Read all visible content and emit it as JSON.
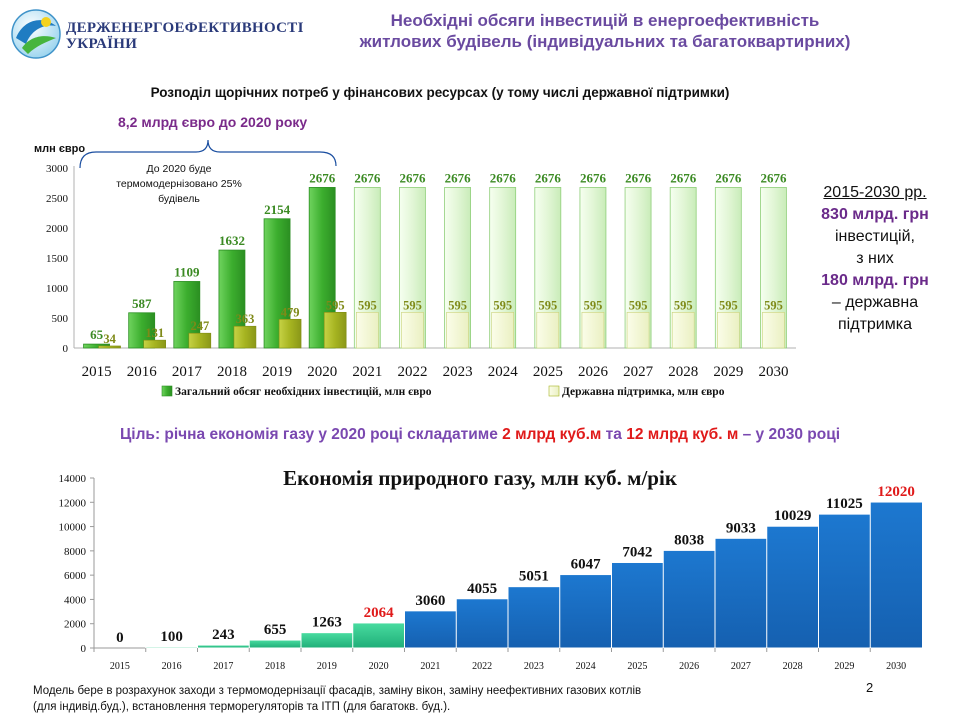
{
  "header": {
    "org_name_line1": "Держенергоефективності",
    "org_name_line2": "України",
    "title_line1": "Необхідні обсяги інвестицій в енергоефективність",
    "title_line2": "житлових будівель (індивідуальних та багатоквартирних)"
  },
  "colors": {
    "title_purple": "#6a4aa0",
    "green_dark": "#3cae2e",
    "green_light": "#e6f7dc",
    "olive_dark": "#a6b421",
    "olive_light": "#f2f6d4",
    "blue": "#1a6fc4",
    "teal": "#2fc48c",
    "red": "#e01a1a"
  },
  "side_info": {
    "period": "2015-2030 рр.",
    "total": "830 млрд. грн",
    "total_label": "інвестицій,",
    "of_which": "з них",
    "state": "180 млрд. грн",
    "state_label": "– державна підтримка"
  },
  "goal": {
    "prefix": "Ціль: річна економія газу у 2020 році складатиме ",
    "value1": "2 млрд куб.м",
    "middle": " та ",
    "value2": "12 млрд куб. м",
    "suffix": " – у 2030 році"
  },
  "footnote": {
    "line1": "Модель бере в розрахунок заходи з термомодернізації  фасадів, заміну вікон, заміну неефективних газових котлів",
    "line2": "(для індивід.буд.), встановлення терморегуляторів та ІТП (для багатокв. буд.)."
  },
  "page_number": "2",
  "chart_data": [
    {
      "type": "bar",
      "title": "Розподіл щорічних потреб у фінансових ресурсах (у тому числі державної підтримки)",
      "bracket_label": "8,2 млрд євро до 2020 року",
      "note": "До 2020 буде термомодернізовано 25% будівель",
      "ylabel": "млн  євро",
      "ylim": [
        0,
        3000
      ],
      "yticks": [
        0,
        500,
        1000,
        1500,
        2000,
        2500,
        3000
      ],
      "categories": [
        "2015",
        "2016",
        "2017",
        "2018",
        "2019",
        "2020",
        "2021",
        "2022",
        "2023",
        "2024",
        "2025",
        "2026",
        "2027",
        "2028",
        "2029",
        "2030"
      ],
      "series": [
        {
          "name": "Загальний обсяг необхідних інвестицій, млн євро",
          "values": [
            65,
            587,
            1109,
            1632,
            2154,
            2676,
            2676,
            2676,
            2676,
            2676,
            2676,
            2676,
            2676,
            2676,
            2676,
            2676
          ]
        },
        {
          "name": "Державна підтримка, млн євро",
          "values": [
            34,
            131,
            247,
            363,
            479,
            595,
            595,
            595,
            595,
            595,
            595,
            595,
            595,
            595,
            595,
            595
          ]
        }
      ],
      "value_labels_total": [
        "65",
        "587",
        "1109",
        "1632",
        "2154",
        "2676",
        "2676",
        "2676",
        "2676",
        "2676",
        "2676",
        "2676",
        "2676",
        "2676",
        "2676",
        "2676"
      ],
      "value_labels_state": [
        "34",
        "131",
        "247",
        "363",
        "479",
        "595",
        "595",
        "595",
        "595",
        "595",
        "595",
        "595",
        "595",
        "595",
        "595",
        "595"
      ],
      "legend": "bottom"
    },
    {
      "type": "area",
      "title": "Економія природного газу, млн куб. м/рік",
      "ylim": [
        0,
        14000
      ],
      "yticks": [
        0,
        2000,
        4000,
        6000,
        8000,
        10000,
        12000,
        14000
      ],
      "categories": [
        "2015",
        "2016",
        "2017",
        "2018",
        "2019",
        "2020",
        "2021",
        "2022",
        "2023",
        "2024",
        "2025",
        "2026",
        "2027",
        "2028",
        "2029",
        "2030"
      ],
      "values": [
        0,
        100,
        243,
        655,
        1263,
        2064,
        3060,
        4055,
        5051,
        6047,
        7042,
        8038,
        9033,
        10029,
        11025,
        12020
      ],
      "value_labels": [
        "0",
        "100",
        "243",
        "655",
        "1263",
        "2064",
        "3060",
        "4055",
        "5051",
        "6047",
        "7042",
        "8038",
        "9033",
        "10029",
        "11025",
        "12020"
      ]
    }
  ]
}
